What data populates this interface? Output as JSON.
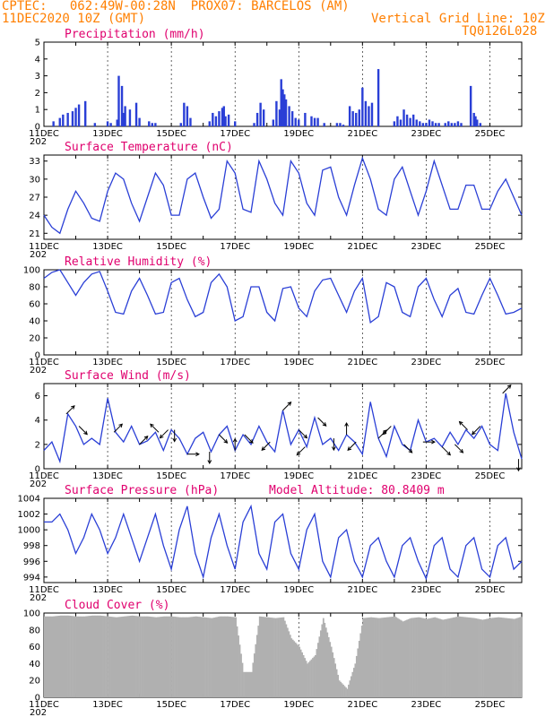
{
  "header": {
    "line1_left": "CPTEC:   062:49W-00:28N  PROX07: BARCELOS (AM)",
    "line2_left": "11DEC2020 10Z (GMT)",
    "line2_right": "Vertical Grid Line: 10Z",
    "line3_right": "TQ0126L028"
  },
  "x_axis": {
    "labels": [
      "11DEC",
      "13DEC",
      "15DEC",
      "17DEC",
      "19DEC",
      "21DEC",
      "23DEC",
      "25DEC"
    ],
    "year_fragment": "202"
  },
  "colors": {
    "line": "#2a3fd6",
    "bar": "#2a3fd6",
    "cloud": "#b0b0b0",
    "title": "#e0006e",
    "header": "#ff7f00"
  },
  "chart_data": [
    {
      "id": "precip",
      "type": "bar",
      "title": "Precipitation (mm/h)",
      "ylim": [
        0,
        5
      ],
      "yticks": [
        0,
        1,
        2,
        3,
        4,
        5
      ],
      "x": [
        0.3,
        0.5,
        0.6,
        0.75,
        0.9,
        1.0,
        1.1,
        1.3,
        1.6,
        2.0,
        2.1,
        2.3,
        2.35,
        2.45,
        2.5,
        2.55,
        2.7,
        2.9,
        3.0,
        3.3,
        3.4,
        3.5,
        4.3,
        4.4,
        4.5,
        4.6,
        5.2,
        5.3,
        5.4,
        5.5,
        5.6,
        5.65,
        5.7,
        5.8,
        6.0,
        6.6,
        6.7,
        6.8,
        6.9,
        7.2,
        7.3,
        7.4,
        7.45,
        7.5,
        7.55,
        7.6,
        7.7,
        7.8,
        7.9,
        8.0,
        8.2,
        8.4,
        8.5,
        8.6,
        8.8,
        9.2,
        9.3,
        9.4,
        9.6,
        9.7,
        9.8,
        9.9,
        10.0,
        10.1,
        10.2,
        10.3,
        10.5,
        11.0,
        11.1,
        11.2,
        11.3,
        11.4,
        11.5,
        11.6,
        11.7,
        11.8,
        11.9,
        12.0,
        12.1,
        12.2,
        12.3,
        12.4,
        12.6,
        12.7,
        12.8,
        12.9,
        13.0,
        13.1,
        13.4,
        13.5,
        13.55,
        13.6,
        13.7
      ],
      "values": [
        0.3,
        0.5,
        0.7,
        0.8,
        0.9,
        1.1,
        1.3,
        1.5,
        0.2,
        0.3,
        0.2,
        0.4,
        3.0,
        2.4,
        0.8,
        1.2,
        1.0,
        1.4,
        0.5,
        0.3,
        0.2,
        0.2,
        0.2,
        1.4,
        1.2,
        0.5,
        0.3,
        0.8,
        0.6,
        0.9,
        1.1,
        1.2,
        0.6,
        0.7,
        0.3,
        0.2,
        0.8,
        1.4,
        1.0,
        0.4,
        1.5,
        1.0,
        2.8,
        2.2,
        1.9,
        1.6,
        1.2,
        0.9,
        0.5,
        0.4,
        0.8,
        0.6,
        0.5,
        0.5,
        0.2,
        0.2,
        0.2,
        0.1,
        1.2,
        0.9,
        0.8,
        1.0,
        2.3,
        1.5,
        1.2,
        1.4,
        3.4,
        0.3,
        0.6,
        0.4,
        1.0,
        0.7,
        0.5,
        0.7,
        0.4,
        0.3,
        0.2,
        0.2,
        0.4,
        0.3,
        0.2,
        0.2,
        0.2,
        0.3,
        0.2,
        0.2,
        0.3,
        0.2,
        2.4,
        0.8,
        0.6,
        0.4,
        0.2
      ]
    },
    {
      "id": "temp",
      "type": "line",
      "title": "Surface Temperature (nC)",
      "ylim": [
        20,
        34
      ],
      "yticks": [
        21,
        24,
        27,
        30,
        33
      ],
      "x": [
        0,
        0.25,
        0.5,
        0.75,
        1.0,
        1.25,
        1.5,
        1.75,
        2.0,
        2.25,
        2.5,
        2.75,
        3.0,
        3.25,
        3.5,
        3.75,
        4.0,
        4.25,
        4.5,
        4.75,
        5.0,
        5.25,
        5.5,
        5.75,
        6.0,
        6.25,
        6.5,
        6.75,
        7.0,
        7.25,
        7.5,
        7.75,
        8.0,
        8.25,
        8.5,
        8.75,
        9.0,
        9.25,
        9.5,
        9.75,
        10.0,
        10.25,
        10.5,
        10.75,
        11.0,
        11.25,
        11.5,
        11.75,
        12.0,
        12.25,
        12.5,
        12.75,
        13.0,
        13.25,
        13.5,
        13.75,
        14.0,
        14.25,
        14.5,
        14.75,
        15.0
      ],
      "values": [
        24,
        22,
        21,
        25,
        28,
        26,
        23.5,
        23,
        28,
        31,
        30,
        26,
        23,
        27,
        31,
        29,
        24,
        24,
        30,
        31,
        27,
        23.5,
        25,
        33,
        31,
        25,
        24.5,
        33,
        30,
        26,
        24,
        33,
        31,
        26,
        24,
        31.5,
        32,
        27,
        24,
        29,
        33.5,
        30,
        25,
        24,
        30,
        32,
        28,
        24,
        28,
        33,
        29,
        25,
        25,
        29,
        29,
        25,
        25,
        28,
        30,
        27,
        24
      ]
    },
    {
      "id": "rh",
      "type": "line",
      "title": "Relative Humidity (%)",
      "ylim": [
        0,
        100
      ],
      "yticks": [
        0,
        20,
        40,
        60,
        80,
        100
      ],
      "x": [
        0,
        0.25,
        0.5,
        0.75,
        1.0,
        1.25,
        1.5,
        1.75,
        2.0,
        2.25,
        2.5,
        2.75,
        3.0,
        3.25,
        3.5,
        3.75,
        4.0,
        4.25,
        4.5,
        4.75,
        5.0,
        5.25,
        5.5,
        5.75,
        6.0,
        6.25,
        6.5,
        6.75,
        7.0,
        7.25,
        7.5,
        7.75,
        8.0,
        8.25,
        8.5,
        8.75,
        9.0,
        9.25,
        9.5,
        9.75,
        10.0,
        10.25,
        10.5,
        10.75,
        11.0,
        11.25,
        11.5,
        11.75,
        12.0,
        12.25,
        12.5,
        12.75,
        13.0,
        13.25,
        13.5,
        13.75,
        14.0,
        14.25,
        14.5,
        14.75,
        15.0
      ],
      "values": [
        90,
        97,
        100,
        85,
        70,
        85,
        95,
        98,
        75,
        50,
        48,
        75,
        90,
        70,
        48,
        50,
        85,
        90,
        65,
        45,
        50,
        85,
        95,
        80,
        40,
        45,
        80,
        80,
        50,
        40,
        78,
        80,
        55,
        45,
        75,
        88,
        90,
        70,
        50,
        75,
        90,
        38,
        45,
        85,
        80,
        50,
        45,
        80,
        90,
        65,
        45,
        70,
        78,
        50,
        48,
        70,
        90,
        70,
        48,
        50,
        55
      ]
    },
    {
      "id": "wind",
      "type": "line",
      "title": "Surface Wind (m/s)",
      "ylim": [
        0,
        7
      ],
      "yticks": [
        0,
        2,
        4,
        6
      ],
      "x": [
        0,
        0.25,
        0.5,
        0.75,
        1.0,
        1.25,
        1.5,
        1.75,
        2.0,
        2.25,
        2.5,
        2.75,
        3.0,
        3.25,
        3.5,
        3.75,
        4.0,
        4.25,
        4.5,
        4.75,
        5.0,
        5.25,
        5.5,
        5.75,
        6.0,
        6.25,
        6.5,
        6.75,
        7.0,
        7.25,
        7.5,
        7.75,
        8.0,
        8.25,
        8.5,
        8.75,
        9.0,
        9.25,
        9.5,
        9.75,
        10.0,
        10.25,
        10.5,
        10.75,
        11.0,
        11.25,
        11.5,
        11.75,
        12.0,
        12.25,
        12.5,
        12.75,
        13.0,
        13.25,
        13.5,
        13.75,
        14.0,
        14.25,
        14.5,
        14.75,
        15.0
      ],
      "values": [
        1.5,
        2.2,
        0.6,
        4.5,
        3.5,
        2.0,
        2.5,
        2.0,
        5.8,
        3.0,
        2.2,
        3.5,
        2.0,
        2.3,
        3.0,
        1.5,
        3.2,
        2.5,
        1.2,
        2.5,
        3.0,
        1.4,
        2.8,
        3.5,
        1.5,
        2.8,
        2.0,
        3.5,
        2.2,
        1.4,
        4.8,
        2.0,
        3.2,
        1.8,
        4.2,
        2.0,
        2.5,
        1.5,
        2.8,
        2.2,
        1.2,
        5.5,
        2.5,
        1.0,
        3.5,
        2.0,
        1.5,
        4.0,
        2.2,
        2.5,
        1.8,
        3.0,
        2.0,
        3.2,
        2.5,
        3.5,
        2.0,
        1.5,
        6.2,
        3.0,
        0.8
      ],
      "arrows": [
        {
          "x": 0.7,
          "dir": "NE"
        },
        {
          "x": 1.1,
          "dir": "SE"
        },
        {
          "x": 2.2,
          "dir": "NE"
        },
        {
          "x": 3.0,
          "dir": "NE"
        },
        {
          "x": 3.6,
          "dir": "NW"
        },
        {
          "x": 3.9,
          "dir": "SW"
        },
        {
          "x": 4.1,
          "dir": "S"
        },
        {
          "x": 4.5,
          "dir": "E"
        },
        {
          "x": 5.2,
          "dir": "S"
        },
        {
          "x": 5.5,
          "dir": "SE"
        },
        {
          "x": 6.0,
          "dir": "N"
        },
        {
          "x": 6.3,
          "dir": "SE"
        },
        {
          "x": 7.1,
          "dir": "SW"
        },
        {
          "x": 7.5,
          "dir": "NE"
        },
        {
          "x": 8.0,
          "dir": "SE"
        },
        {
          "x": 8.2,
          "dir": "SW"
        },
        {
          "x": 8.6,
          "dir": "SE"
        },
        {
          "x": 9.1,
          "dir": "S"
        },
        {
          "x": 9.5,
          "dir": "N"
        },
        {
          "x": 9.8,
          "dir": "SW"
        },
        {
          "x": 10.5,
          "dir": "NE"
        },
        {
          "x": 10.9,
          "dir": "SW"
        },
        {
          "x": 11.3,
          "dir": "SE"
        },
        {
          "x": 11.9,
          "dir": "E"
        },
        {
          "x": 12.5,
          "dir": "SE"
        },
        {
          "x": 12.9,
          "dir": "SE"
        },
        {
          "x": 13.3,
          "dir": "NW"
        },
        {
          "x": 13.7,
          "dir": "SW"
        },
        {
          "x": 14.4,
          "dir": "NE"
        },
        {
          "x": 14.9,
          "dir": "S"
        }
      ]
    },
    {
      "id": "pres",
      "type": "line",
      "title": "Surface Pressure (hPa)",
      "annotation": "Model Altitude: 80.8409 m",
      "ylim": [
        993.3,
        1004
      ],
      "yticks": [
        994,
        996,
        998,
        1000,
        1002,
        1004
      ],
      "x": [
        0,
        0.25,
        0.5,
        0.75,
        1.0,
        1.25,
        1.5,
        1.75,
        2.0,
        2.25,
        2.5,
        2.75,
        3.0,
        3.25,
        3.5,
        3.75,
        4.0,
        4.25,
        4.5,
        4.75,
        5.0,
        5.25,
        5.5,
        5.75,
        6.0,
        6.25,
        6.5,
        6.75,
        7.0,
        7.25,
        7.5,
        7.75,
        8.0,
        8.25,
        8.5,
        8.75,
        9.0,
        9.25,
        9.5,
        9.75,
        10.0,
        10.25,
        10.5,
        10.75,
        11.0,
        11.25,
        11.5,
        11.75,
        12.0,
        12.25,
        12.5,
        12.75,
        13.0,
        13.25,
        13.5,
        13.75,
        14.0,
        14.25,
        14.5,
        14.75,
        15.0
      ],
      "values": [
        1001,
        1001,
        1002,
        1000,
        997,
        999,
        1002,
        1000,
        997,
        999,
        1002,
        999,
        996,
        999,
        1002,
        998,
        995,
        1000,
        1003,
        997,
        994,
        999,
        1002,
        998,
        995,
        1001,
        1003,
        997,
        995,
        1001,
        1002,
        997,
        995,
        1000,
        1002,
        996,
        994,
        999,
        1000,
        996,
        994,
        998,
        999,
        996,
        994,
        998,
        999,
        996,
        993.8,
        998,
        999,
        995,
        994,
        998,
        999,
        995,
        994,
        998,
        999,
        995,
        996
      ]
    },
    {
      "id": "cloud",
      "type": "area",
      "title": "Cloud Cover (%)",
      "ylim": [
        0,
        100
      ],
      "yticks": [
        0,
        20,
        40,
        60,
        80,
        100
      ],
      "x": [
        0,
        0.25,
        0.5,
        0.75,
        1.0,
        1.25,
        1.5,
        1.75,
        2.0,
        2.25,
        2.5,
        2.75,
        3.0,
        3.25,
        3.5,
        3.75,
        4.0,
        4.25,
        4.5,
        4.75,
        5.0,
        5.25,
        5.5,
        5.75,
        6.0,
        6.25,
        6.5,
        6.75,
        7.0,
        7.25,
        7.5,
        7.75,
        8.0,
        8.25,
        8.5,
        8.75,
        9.0,
        9.25,
        9.5,
        9.75,
        10.0,
        10.25,
        10.5,
        10.75,
        11.0,
        11.25,
        11.5,
        11.75,
        12.0,
        12.25,
        12.5,
        12.75,
        13.0,
        13.25,
        13.5,
        13.75,
        14.0,
        14.25,
        14.5,
        14.75,
        15.0
      ],
      "values": [
        96,
        96,
        97,
        97,
        96,
        96,
        97,
        97,
        96,
        95,
        96,
        97,
        96,
        96,
        95,
        96,
        96,
        95,
        95,
        96,
        95,
        94,
        96,
        96,
        95,
        30,
        30,
        96,
        95,
        94,
        95,
        70,
        60,
        40,
        50,
        94,
        60,
        20,
        10,
        40,
        94,
        95,
        94,
        95,
        96,
        90,
        94,
        95,
        93,
        95,
        92,
        94,
        96,
        95,
        94,
        92,
        94,
        95,
        94,
        93,
        96
      ]
    }
  ]
}
